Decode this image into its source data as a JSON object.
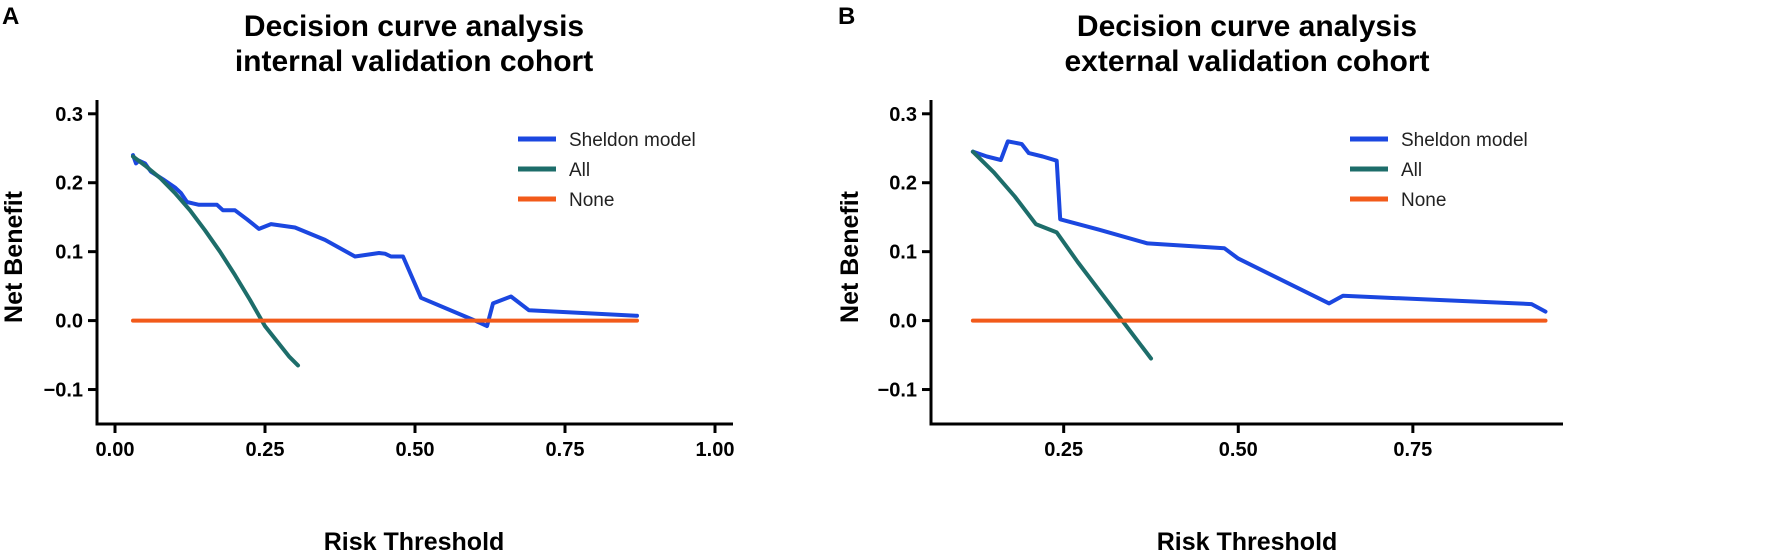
{
  "panel_labels": [
    "A",
    "B"
  ],
  "colors": {
    "model": "#1b47e0",
    "all": "#1d6d6a",
    "none": "#f25a1a",
    "axis": "#000000"
  },
  "chart_data": [
    {
      "type": "line",
      "title_lines": [
        "Decision curve analysis",
        "internal validation cohort"
      ],
      "xlabel": "Risk Threshold",
      "ylabel": "Net Benefit",
      "xlim": [
        -0.03,
        1.03
      ],
      "ylim": [
        -0.15,
        0.32
      ],
      "xticks": [
        0.0,
        0.25,
        0.5,
        0.75,
        1.0
      ],
      "xtick_labels": [
        "0.00",
        "0.25",
        "0.50",
        "0.75",
        "1.00"
      ],
      "yticks": [
        -0.1,
        0.0,
        0.1,
        0.2,
        0.3
      ],
      "ytick_labels": [
        "−0.1",
        "0.0",
        "0.1",
        "0.2",
        "0.3"
      ],
      "series": [
        {
          "name": "Sheldon model",
          "color_key": "model",
          "x": [
            0.03,
            0.035,
            0.04,
            0.05,
            0.055,
            0.06,
            0.08,
            0.1,
            0.11,
            0.12,
            0.13,
            0.14,
            0.15,
            0.17,
            0.18,
            0.2,
            0.22,
            0.24,
            0.26,
            0.3,
            0.35,
            0.4,
            0.44,
            0.45,
            0.46,
            0.48,
            0.51,
            0.6,
            0.62,
            0.63,
            0.66,
            0.69,
            0.87
          ],
          "y": [
            0.24,
            0.228,
            0.232,
            0.228,
            0.222,
            0.216,
            0.205,
            0.193,
            0.185,
            0.172,
            0.17,
            0.168,
            0.168,
            0.168,
            0.16,
            0.16,
            0.147,
            0.133,
            0.14,
            0.135,
            0.117,
            0.093,
            0.098,
            0.097,
            0.093,
            0.093,
            0.033,
            0.0,
            -0.008,
            0.025,
            0.035,
            0.015,
            0.007
          ]
        },
        {
          "name": "All",
          "color_key": "all",
          "x": [
            0.03,
            0.05,
            0.075,
            0.1,
            0.125,
            0.15,
            0.175,
            0.2,
            0.225,
            0.25,
            0.27,
            0.29,
            0.305
          ],
          "y": [
            0.238,
            0.225,
            0.207,
            0.185,
            0.16,
            0.131,
            0.1,
            0.066,
            0.03,
            -0.008,
            -0.03,
            -0.052,
            -0.065
          ]
        },
        {
          "name": "None",
          "color_key": "none",
          "x": [
            0.03,
            0.87
          ],
          "y": [
            0.0,
            0.0
          ]
        }
      ],
      "legend": [
        "Sheldon model",
        "All",
        "None"
      ],
      "legend_position": "top-right"
    },
    {
      "type": "line",
      "title_lines": [
        "Decision curve analysis",
        "external validation cohort"
      ],
      "xlabel": "Risk Threshold",
      "ylabel": "Net Benefit",
      "xlim": [
        0.06,
        0.965
      ],
      "ylim": [
        -0.15,
        0.32
      ],
      "xticks": [
        0.25,
        0.5,
        0.75
      ],
      "xtick_labels": [
        "0.25",
        "0.50",
        "0.75"
      ],
      "yticks": [
        -0.1,
        0.0,
        0.1,
        0.2,
        0.3
      ],
      "ytick_labels": [
        "−0.1",
        "0.0",
        "0.1",
        "0.2",
        "0.3"
      ],
      "series": [
        {
          "name": "Sheldon model",
          "color_key": "model",
          "x": [
            0.12,
            0.14,
            0.16,
            0.17,
            0.18,
            0.19,
            0.2,
            0.22,
            0.24,
            0.245,
            0.3,
            0.37,
            0.48,
            0.5,
            0.63,
            0.65,
            0.92,
            0.94
          ],
          "y": [
            0.245,
            0.238,
            0.233,
            0.26,
            0.258,
            0.256,
            0.243,
            0.238,
            0.232,
            0.147,
            0.132,
            0.112,
            0.105,
            0.09,
            0.025,
            0.036,
            0.024,
            0.013
          ]
        },
        {
          "name": "All",
          "color_key": "all",
          "x": [
            0.12,
            0.15,
            0.18,
            0.21,
            0.24,
            0.27,
            0.3,
            0.33,
            0.36,
            0.375
          ],
          "y": [
            0.245,
            0.215,
            0.18,
            0.14,
            0.128,
            0.085,
            0.045,
            0.005,
            -0.035,
            -0.055
          ]
        },
        {
          "name": "None",
          "color_key": "none",
          "x": [
            0.12,
            0.94
          ],
          "y": [
            0.0,
            0.0
          ]
        }
      ],
      "legend": [
        "Sheldon model",
        "All",
        "None"
      ],
      "legend_position": "top-right"
    }
  ]
}
